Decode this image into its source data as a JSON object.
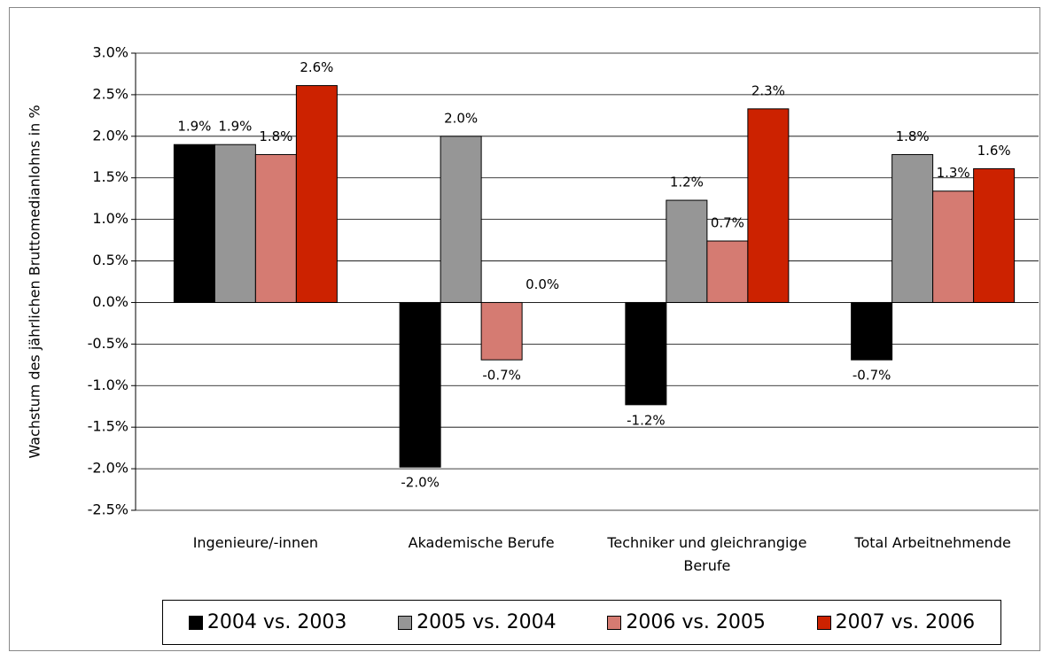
{
  "chart_data": {
    "type": "bar",
    "y_label": "Wachstum des jährlichen Bruttomedianlohns in %",
    "categories": [
      "Ingenieure/-innen",
      "Akademische Berufe",
      "Techniker und gleichrangige Berufe",
      "Total Arbeitnehmende"
    ],
    "series": [
      {
        "name": "2004 vs. 2003",
        "color": "#000000",
        "values": [
          1.9,
          -1.98,
          -1.23,
          -0.69
        ],
        "value_labels": [
          "1.9%",
          "-2.0%",
          "-1.2%",
          "-0.7%"
        ]
      },
      {
        "name": "2005 vs. 2004",
        "color": "#969696",
        "values": [
          1.9,
          2.0,
          1.23,
          1.78
        ],
        "value_labels": [
          "1.9%",
          "2.0%",
          "1.2%",
          "1.8%"
        ]
      },
      {
        "name": "2006 vs. 2005",
        "color": "#d57b72",
        "values": [
          1.78,
          -0.69,
          0.74,
          1.34
        ],
        "value_labels": [
          "1.8%",
          "-0.7%",
          "0.7%",
          "1.3%"
        ]
      },
      {
        "name": "2007 vs. 2006",
        "color": "#cc2200",
        "values": [
          2.61,
          0.0,
          2.33,
          1.61
        ],
        "value_labels": [
          "2.6%",
          "0.0%",
          "2.3%",
          "1.6%"
        ]
      }
    ],
    "ylim": [
      -2.5,
      3.0
    ],
    "yticks": [
      {
        "value": -2.5,
        "label": "-2.5%"
      },
      {
        "value": -2.0,
        "label": "-2.0%"
      },
      {
        "value": -1.5,
        "label": "-1.5%"
      },
      {
        "value": -1.0,
        "label": "-1.0%"
      },
      {
        "value": -0.5,
        "label": "-0.5%"
      },
      {
        "value": 0.0,
        "label": "0.0%"
      },
      {
        "value": 0.5,
        "label": "0.5%"
      },
      {
        "value": 1.0,
        "label": "1.0%"
      },
      {
        "value": 1.5,
        "label": "1.5%"
      },
      {
        "value": 2.0,
        "label": "2.0%"
      },
      {
        "value": 2.5,
        "label": "2.5%"
      },
      {
        "value": 3.0,
        "label": "3.0%"
      }
    ],
    "grid": true
  }
}
